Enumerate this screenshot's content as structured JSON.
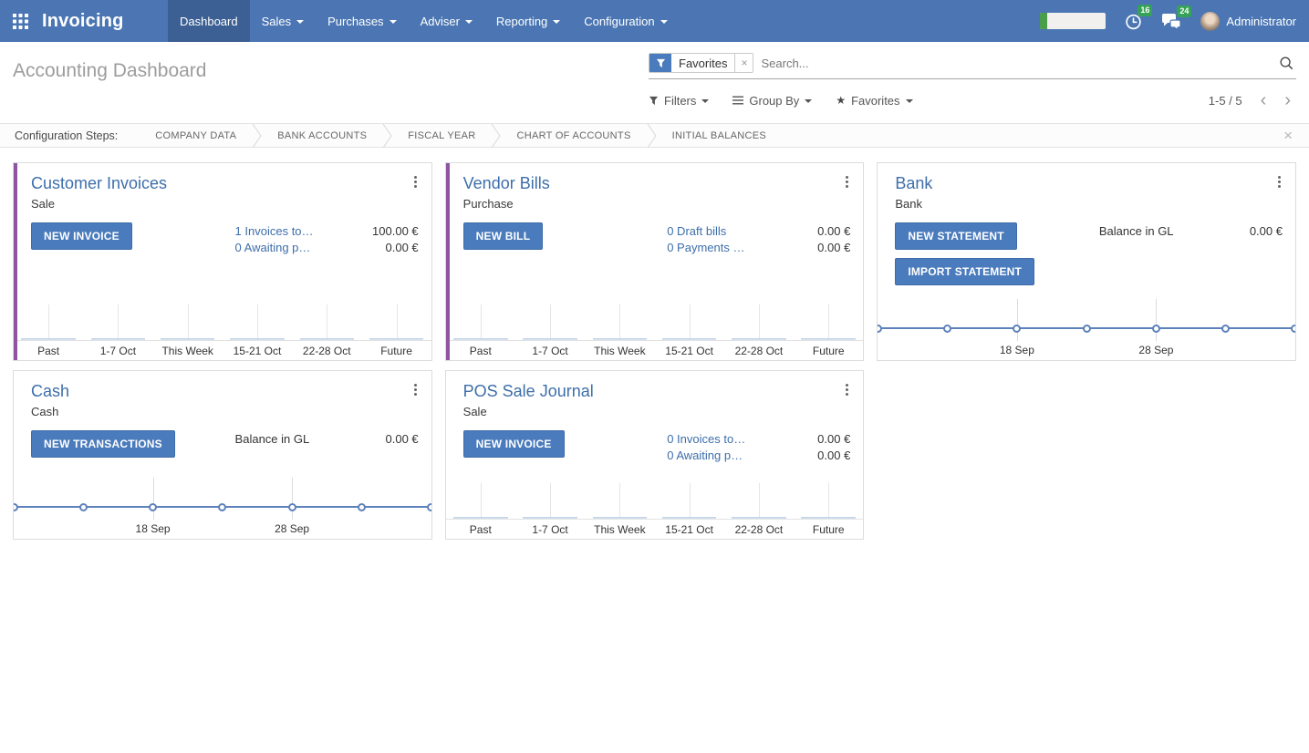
{
  "colors": {
    "nav_blue": "#4b76b3",
    "nav_active_blue": "#3c6093",
    "button_blue": "#4a7bbc",
    "button_border": "#3f6ba8",
    "link_blue": "#3d6eaa",
    "accent_purple": "#8e55a0",
    "badge_green": "#36a257",
    "progress_green": "#4a9e4a",
    "chart_line_blue": "#5d81ba",
    "chart_bar_fill": "#d3e0f0"
  },
  "nav": {
    "app_name": "Invoicing",
    "items": [
      {
        "label": "Dashboard",
        "active": true
      },
      {
        "label": "Sales",
        "active": false
      },
      {
        "label": "Purchases",
        "active": false
      },
      {
        "label": "Adviser",
        "active": false
      },
      {
        "label": "Reporting",
        "active": false
      },
      {
        "label": "Configuration",
        "active": false
      }
    ],
    "systray": {
      "progress_percent": 10,
      "activities_badge": "16",
      "messages_badge": "24",
      "user_name": "Administrator"
    }
  },
  "control_panel": {
    "title": "Accounting Dashboard",
    "search": {
      "facet_label": "Favorites",
      "facet_remove": "×",
      "placeholder": "Search..."
    },
    "buttons": {
      "filters": "Filters",
      "group_by": "Group By",
      "favorites": "Favorites"
    },
    "pager": {
      "value": "1-5 / 5",
      "prev": "‹",
      "next": "›"
    }
  },
  "config_steps": {
    "label": "Configuration Steps:",
    "steps": [
      "COMPANY DATA",
      "BANK ACCOUNTS",
      "FISCAL YEAR",
      "CHART OF ACCOUNTS",
      "INITIAL BALANCES"
    ],
    "close": "×"
  },
  "cards": [
    {
      "title": "Customer Invoices",
      "subtitle": "Sale",
      "accent": true,
      "buttons": [
        "NEW INVOICE"
      ],
      "kpis": [
        {
          "label": "1 Invoices to…",
          "value": "100.00 €"
        },
        {
          "label": "0 Awaiting p…",
          "value": "0.00 €"
        }
      ],
      "chart": {
        "type": "bar",
        "categories": [
          "Past",
          "1-7 Oct",
          "This Week",
          "15-21 Oct",
          "22-28 Oct",
          "Future"
        ],
        "values": [
          0,
          0,
          0,
          0,
          0,
          0
        ]
      }
    },
    {
      "title": "Vendor Bills",
      "subtitle": "Purchase",
      "accent": true,
      "buttons": [
        "NEW BILL"
      ],
      "kpis": [
        {
          "label": "0 Draft bills",
          "value": "0.00 €"
        },
        {
          "label": "0 Payments …",
          "value": "0.00 €"
        }
      ],
      "chart": {
        "type": "bar",
        "categories": [
          "Past",
          "1-7 Oct",
          "This Week",
          "15-21 Oct",
          "22-28 Oct",
          "Future"
        ],
        "values": [
          0,
          0,
          0,
          0,
          0,
          0
        ]
      }
    },
    {
      "title": "Bank",
      "subtitle": "Bank",
      "accent": false,
      "buttons": [
        "NEW STATEMENT",
        "IMPORT STATEMENT"
      ],
      "balance": {
        "label": "Balance in GL",
        "value": "0.00 €"
      },
      "chart": {
        "type": "line",
        "values": [
          0,
          0,
          0,
          0,
          0,
          0,
          0
        ],
        "x_labels": [
          {
            "text": "18 Sep",
            "index": 2
          },
          {
            "text": "28 Sep",
            "index": 4
          }
        ]
      }
    },
    {
      "title": "Cash",
      "subtitle": "Cash",
      "accent": false,
      "buttons": [
        "NEW TRANSACTIONS"
      ],
      "balance": {
        "label": "Balance in GL",
        "value": "0.00 €"
      },
      "chart": {
        "type": "line",
        "values": [
          0,
          0,
          0,
          0,
          0,
          0,
          0
        ],
        "x_labels": [
          {
            "text": "18 Sep",
            "index": 2
          },
          {
            "text": "28 Sep",
            "index": 4
          }
        ]
      }
    },
    {
      "title": "POS Sale Journal",
      "subtitle": "Sale",
      "accent": false,
      "buttons": [
        "NEW INVOICE"
      ],
      "kpis": [
        {
          "label": "0 Invoices to…",
          "value": "0.00 €"
        },
        {
          "label": "0 Awaiting p…",
          "value": "0.00 €"
        }
      ],
      "chart": {
        "type": "bar",
        "categories": [
          "Past",
          "1-7 Oct",
          "This Week",
          "15-21 Oct",
          "22-28 Oct",
          "Future"
        ],
        "values": [
          0,
          0,
          0,
          0,
          0,
          0
        ]
      }
    }
  ]
}
